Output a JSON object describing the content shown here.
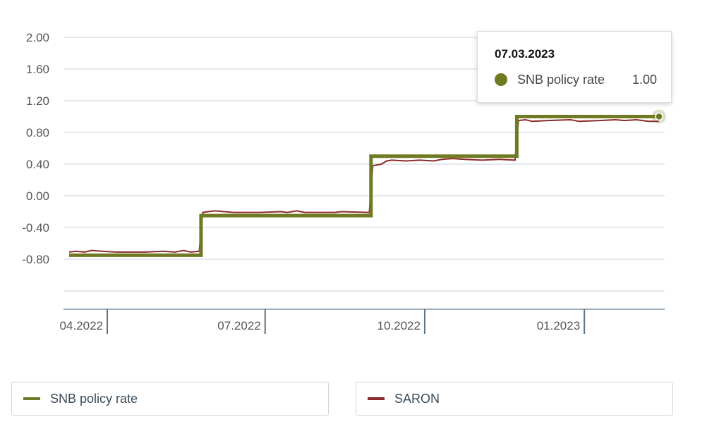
{
  "chart_data": {
    "type": "line",
    "title": "",
    "xlabel": "",
    "ylabel": "",
    "ylim": [
      -1.2,
      2.0
    ],
    "yticks": [
      "2.00",
      "1.60",
      "1.20",
      "0.80",
      "0.40",
      "0.00",
      "-0.40",
      "-0.80"
    ],
    "ytick_values": [
      2.0,
      1.6,
      1.2,
      0.8,
      0.4,
      0.0,
      -0.4,
      -0.8
    ],
    "xticks": [
      "04.2022",
      "07.2022",
      "10.2022",
      "01.2023"
    ],
    "xtick_dates": [
      "2022-04-01",
      "2022-07-01",
      "2022-10-01",
      "2023-01-01"
    ],
    "xlim": [
      "2022-04-01",
      "2023-03-07"
    ],
    "grid": true,
    "legend_position": "bottom",
    "series": [
      {
        "name": "SNB policy rate",
        "color": "#6f7a22",
        "step": true,
        "points": [
          [
            "2022-04-01",
            -0.75
          ],
          [
            "2022-06-16",
            -0.75
          ],
          [
            "2022-06-16",
            -0.25
          ],
          [
            "2022-09-22",
            -0.25
          ],
          [
            "2022-09-22",
            0.5
          ],
          [
            "2022-12-15",
            0.5
          ],
          [
            "2022-12-15",
            1.0
          ],
          [
            "2023-03-07",
            1.0
          ]
        ]
      },
      {
        "name": "SARON",
        "color": "#8b2a2a",
        "step": false,
        "points": [
          [
            "2022-04-01",
            -0.71
          ],
          [
            "2022-04-05",
            -0.7
          ],
          [
            "2022-04-10",
            -0.71
          ],
          [
            "2022-04-14",
            -0.69
          ],
          [
            "2022-04-20",
            -0.7
          ],
          [
            "2022-04-28",
            -0.71
          ],
          [
            "2022-05-15",
            -0.71
          ],
          [
            "2022-05-25",
            -0.7
          ],
          [
            "2022-06-01",
            -0.71
          ],
          [
            "2022-06-06",
            -0.69
          ],
          [
            "2022-06-10",
            -0.71
          ],
          [
            "2022-06-15",
            -0.7
          ],
          [
            "2022-06-17",
            -0.21
          ],
          [
            "2022-06-20",
            -0.2
          ],
          [
            "2022-06-24",
            -0.19
          ],
          [
            "2022-07-05",
            -0.21
          ],
          [
            "2022-07-20",
            -0.21
          ],
          [
            "2022-08-01",
            -0.2
          ],
          [
            "2022-08-05",
            -0.21
          ],
          [
            "2022-08-10",
            -0.19
          ],
          [
            "2022-08-15",
            -0.21
          ],
          [
            "2022-09-01",
            -0.21
          ],
          [
            "2022-09-05",
            -0.2
          ],
          [
            "2022-09-21",
            -0.21
          ],
          [
            "2022-09-23",
            0.38
          ],
          [
            "2022-09-28",
            0.4
          ],
          [
            "2022-10-01",
            0.44
          ],
          [
            "2022-10-04",
            0.45
          ],
          [
            "2022-10-12",
            0.44
          ],
          [
            "2022-10-20",
            0.45
          ],
          [
            "2022-10-28",
            0.44
          ],
          [
            "2022-11-02",
            0.46
          ],
          [
            "2022-11-08",
            0.47
          ],
          [
            "2022-11-15",
            0.46
          ],
          [
            "2022-11-25",
            0.45
          ],
          [
            "2022-12-05",
            0.46
          ],
          [
            "2022-12-14",
            0.45
          ],
          [
            "2022-12-16",
            0.95
          ],
          [
            "2022-12-20",
            0.96
          ],
          [
            "2022-12-24",
            0.94
          ],
          [
            "2023-01-02",
            0.95
          ],
          [
            "2023-01-15",
            0.96
          ],
          [
            "2023-01-20",
            0.94
          ],
          [
            "2023-02-01",
            0.95
          ],
          [
            "2023-02-10",
            0.96
          ],
          [
            "2023-02-15",
            0.95
          ],
          [
            "2023-02-22",
            0.96
          ],
          [
            "2023-03-01",
            0.94
          ],
          [
            "2023-03-07",
            0.94
          ]
        ]
      }
    ]
  },
  "tooltip": {
    "date": "07.03.2023",
    "series_name": "SNB policy rate",
    "value": "1.00",
    "color": "#6f7a22"
  },
  "legend": {
    "items": [
      {
        "label": "SNB policy rate",
        "color": "#6f7a22"
      },
      {
        "label": "SARON",
        "color": "#8b2a2a"
      }
    ]
  }
}
